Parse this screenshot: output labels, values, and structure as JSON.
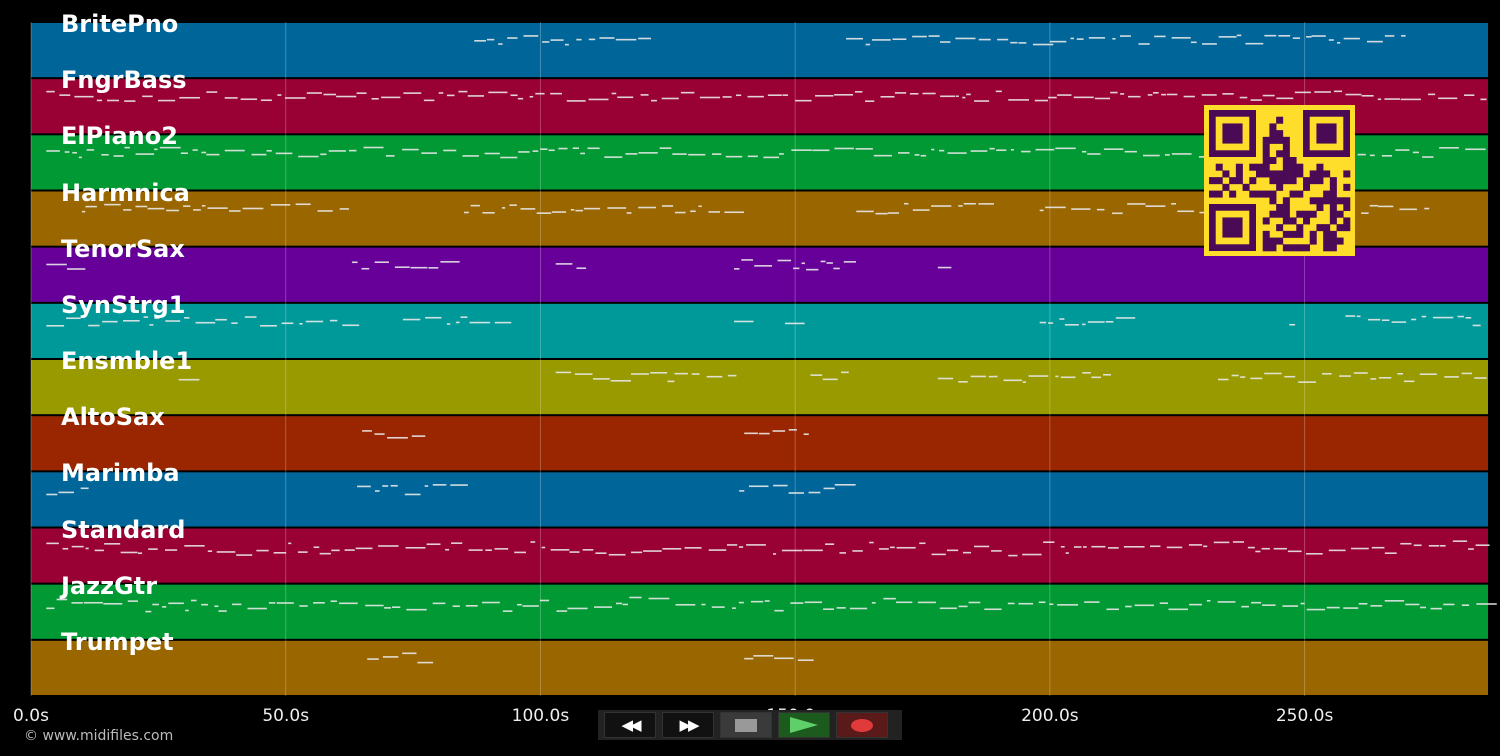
{
  "tracks": [
    {
      "name": "BritePno",
      "color": "#006699"
    },
    {
      "name": "FngrBass",
      "color": "#990033"
    },
    {
      "name": "ElPiano2",
      "color": "#009933"
    },
    {
      "name": "Harmnica",
      "color": "#996600"
    },
    {
      "name": "TenorSax",
      "color": "#660099"
    },
    {
      "name": "SynStrg1",
      "color": "#009999"
    },
    {
      "name": "Ensmble1",
      "color": "#999900"
    },
    {
      "name": "AltoSax",
      "color": "#992600"
    },
    {
      "name": "Marimba",
      "color": "#006699"
    },
    {
      "name": "Standard",
      "color": "#990033"
    },
    {
      "name": "JazzGtr",
      "color": "#009933"
    },
    {
      "name": "Trumpet",
      "color": "#996600"
    }
  ],
  "timeline": {
    "ticks": [
      "0.0s",
      "50.0s",
      "100.0s",
      "150.0s",
      "200.0s",
      "250.0s"
    ],
    "tick_values": [
      0,
      50,
      100,
      150,
      200,
      250
    ],
    "duration": 286
  },
  "transport": {
    "rewind_label": "◀◀",
    "forward_label": "▶▶"
  },
  "qr": {
    "fg": "#4b0a55",
    "bg": "#ffde2b"
  },
  "copyright": "© www.midifiles.com"
}
